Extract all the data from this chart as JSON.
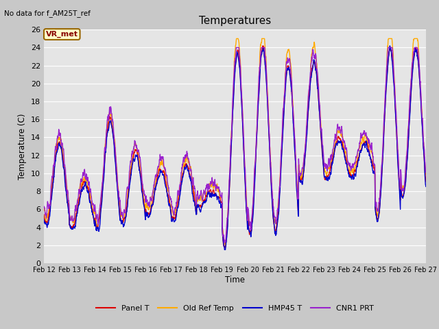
{
  "title": "Temperatures",
  "ylabel": "Temperature (C)",
  "xlabel": "Time",
  "note": "No data for f_AM25T_ref",
  "vr_label": "VR_met",
  "ylim": [
    0,
    26
  ],
  "bg_color": "#e5e5e5",
  "series": {
    "Panel T": {
      "color": "#dd0000",
      "lw": 1.0
    },
    "Old Ref Temp": {
      "color": "#ffaa00",
      "lw": 1.0
    },
    "HMP45 T": {
      "color": "#0000cc",
      "lw": 1.0
    },
    "CNR1 PRT": {
      "color": "#9922cc",
      "lw": 1.0
    }
  },
  "xtick_labels": [
    "Feb 12",
    "Feb 13",
    "Feb 14",
    "Feb 15",
    "Feb 16",
    "Feb 17",
    "Feb 18",
    "Feb 19",
    "Feb 20",
    "Feb 21",
    "Feb 22",
    "Feb 23",
    "Feb 24",
    "Feb 25",
    "Feb 26",
    "Feb 27"
  ],
  "ytick_values": [
    0,
    2,
    4,
    6,
    8,
    10,
    12,
    14,
    16,
    18,
    20,
    22,
    24,
    26
  ]
}
